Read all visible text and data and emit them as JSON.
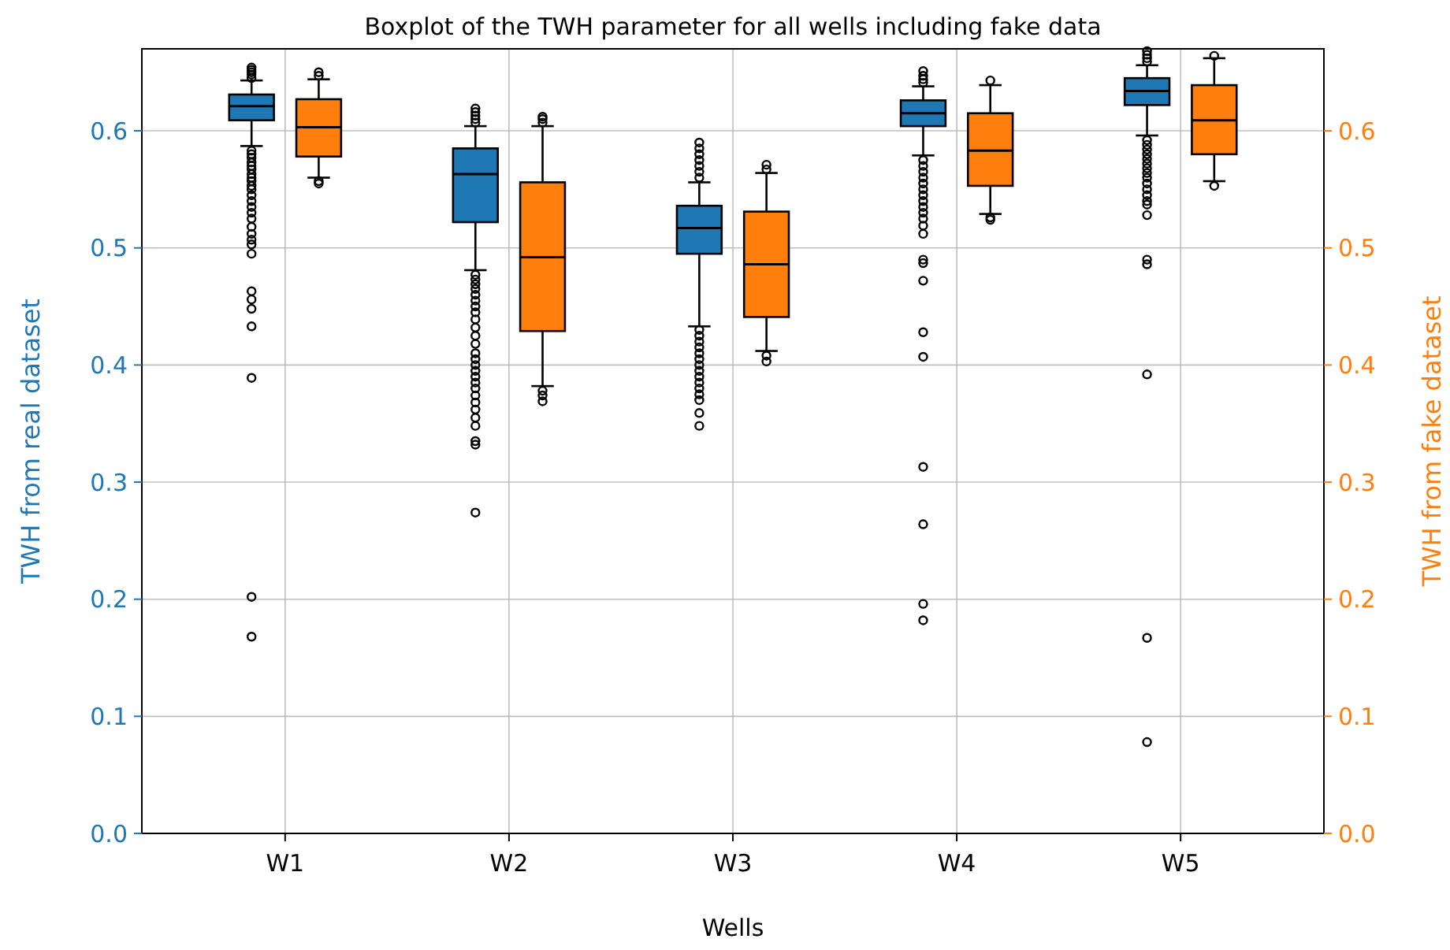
{
  "chart_data": {
    "type": "box",
    "title": "Boxplot of the TWH parameter for all wells including fake data",
    "xlabel": "Wells",
    "ylabel": "TWH from real dataset",
    "y2label": "TWH from fake dataset",
    "categories": [
      "W1",
      "W2",
      "W3",
      "W4",
      "W5"
    ],
    "series": [
      {
        "color": "#1f77b4",
        "boxes": [
          {
            "low": 0.587,
            "q1": 0.609,
            "median": 0.621,
            "q3": 0.631,
            "high": 0.643,
            "outliers": [
              0.645,
              0.648,
              0.65,
              0.652,
              0.654,
              0.583,
              0.58,
              0.577,
              0.573,
              0.57,
              0.567,
              0.563,
              0.56,
              0.557,
              0.553,
              0.55,
              0.545,
              0.54,
              0.535,
              0.53,
              0.525,
              0.518,
              0.512,
              0.507,
              0.503,
              0.495,
              0.463,
              0.456,
              0.448,
              0.433,
              0.389,
              0.202,
              0.168
            ]
          },
          {
            "low": 0.481,
            "q1": 0.522,
            "median": 0.563,
            "q3": 0.585,
            "high": 0.604,
            "outliers": [
              0.607,
              0.61,
              0.613,
              0.616,
              0.619,
              0.477,
              0.473,
              0.469,
              0.465,
              0.46,
              0.455,
              0.45,
              0.445,
              0.439,
              0.432,
              0.425,
              0.418,
              0.41,
              0.405,
              0.4,
              0.395,
              0.39,
              0.385,
              0.38,
              0.374,
              0.368,
              0.362,
              0.355,
              0.348,
              0.335,
              0.332,
              0.274
            ]
          },
          {
            "low": 0.433,
            "q1": 0.495,
            "median": 0.517,
            "q3": 0.536,
            "high": 0.556,
            "outliers": [
              0.56,
              0.565,
              0.57,
              0.575,
              0.58,
              0.585,
              0.59,
              0.43,
              0.425,
              0.42,
              0.415,
              0.41,
              0.405,
              0.4,
              0.395,
              0.39,
              0.385,
              0.38,
              0.375,
              0.37,
              0.359,
              0.348
            ]
          },
          {
            "low": 0.579,
            "q1": 0.604,
            "median": 0.615,
            "q3": 0.626,
            "high": 0.638,
            "outliers": [
              0.641,
              0.644,
              0.647,
              0.651,
              0.575,
              0.57,
              0.565,
              0.56,
              0.555,
              0.55,
              0.545,
              0.54,
              0.535,
              0.53,
              0.525,
              0.519,
              0.512,
              0.49,
              0.487,
              0.472,
              0.428,
              0.407,
              0.313,
              0.264,
              0.196,
              0.182
            ]
          },
          {
            "low": 0.596,
            "q1": 0.622,
            "median": 0.634,
            "q3": 0.645,
            "high": 0.656,
            "outliers": [
              0.659,
              0.662,
              0.665,
              0.668,
              0.592,
              0.588,
              0.584,
              0.58,
              0.576,
              0.572,
              0.568,
              0.564,
              0.56,
              0.555,
              0.55,
              0.545,
              0.54,
              0.537,
              0.528,
              0.49,
              0.486,
              0.392,
              0.167,
              0.078
            ]
          }
        ]
      },
      {
        "color": "#ff7f0e",
        "axis": "y2",
        "boxes": [
          {
            "low": 0.56,
            "q1": 0.578,
            "median": 0.603,
            "q3": 0.627,
            "high": 0.644,
            "outliers": [
              0.647,
              0.65,
              0.557,
              0.555
            ]
          },
          {
            "low": 0.382,
            "q1": 0.429,
            "median": 0.492,
            "q3": 0.556,
            "high": 0.604,
            "outliers": [
              0.607,
              0.61,
              0.612,
              0.378,
              0.374,
              0.369
            ]
          },
          {
            "low": 0.412,
            "q1": 0.441,
            "median": 0.486,
            "q3": 0.531,
            "high": 0.564,
            "outliers": [
              0.567,
              0.571,
              0.408,
              0.403
            ]
          },
          {
            "low": 0.529,
            "q1": 0.553,
            "median": 0.583,
            "q3": 0.615,
            "high": 0.639,
            "outliers": [
              0.643,
              0.526,
              0.524
            ]
          },
          {
            "low": 0.557,
            "q1": 0.58,
            "median": 0.609,
            "q3": 0.639,
            "high": 0.662,
            "outliers": [
              0.664,
              0.553
            ]
          }
        ]
      }
    ],
    "ylim": [
      0,
      0.67
    ],
    "yticks": [
      {
        "value": 0,
        "label": "0.0"
      },
      0.1,
      0.2,
      0.3,
      0.4,
      0.5,
      0.6
    ],
    "y2lim": [
      0,
      0.67
    ],
    "y2ticks": [
      {
        "value": 0,
        "label": "0.0"
      },
      0.1,
      0.2,
      0.3,
      0.4,
      0.5,
      0.6
    ],
    "grid": true
  }
}
